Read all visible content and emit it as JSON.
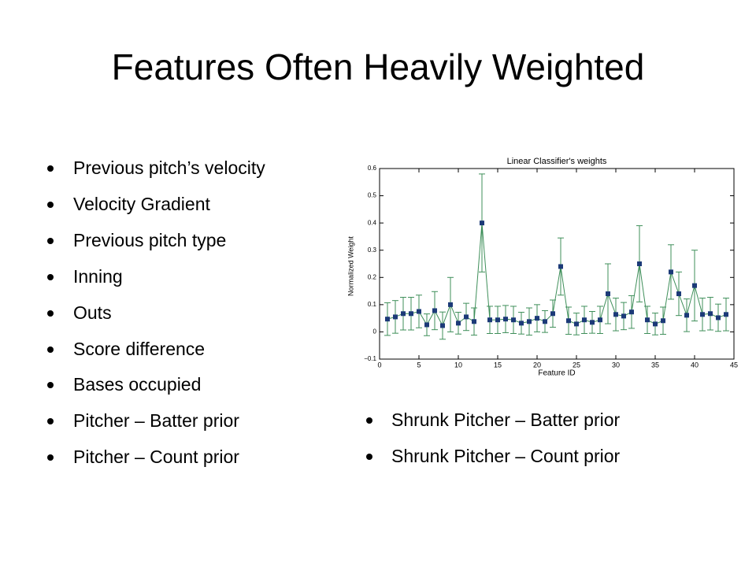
{
  "slide": {
    "title": "Features Often Heavily Weighted",
    "left_bullets": [
      "Previous pitch’s velocity",
      "Velocity Gradient",
      "Previous pitch type",
      "Inning",
      "Outs",
      "Score difference",
      "Bases occupied",
      "Pitcher – Batter prior",
      "Pitcher – Count prior"
    ],
    "right_bullets": [
      "Shrunk Pitcher – Batter prior",
      "Shrunk Pitcher – Count prior"
    ]
  },
  "chart_data": {
    "type": "errorbar",
    "title": "Linear Classifier's weights",
    "xlabel": "Feature ID",
    "ylabel": "Normalized Weight",
    "x": [
      1,
      2,
      3,
      4,
      5,
      6,
      7,
      8,
      9,
      10,
      11,
      12,
      13,
      14,
      15,
      16,
      17,
      18,
      19,
      20,
      21,
      22,
      23,
      24,
      25,
      26,
      27,
      28,
      29,
      30,
      31,
      32,
      33,
      34,
      35,
      36,
      37,
      38,
      39,
      40,
      41,
      42,
      43,
      44
    ],
    "values": [
      0.047,
      0.055,
      0.067,
      0.067,
      0.075,
      0.026,
      0.078,
      0.023,
      0.1,
      0.032,
      0.055,
      0.038,
      0.4,
      0.044,
      0.044,
      0.047,
      0.044,
      0.032,
      0.038,
      0.05,
      0.038,
      0.067,
      0.24,
      0.041,
      0.029,
      0.044,
      0.035,
      0.044,
      0.14,
      0.064,
      0.058,
      0.073,
      0.25,
      0.044,
      0.029,
      0.041,
      0.22,
      0.14,
      0.061,
      0.17,
      0.064,
      0.067,
      0.052,
      0.064
    ],
    "errors": [
      0.06,
      0.06,
      0.06,
      0.06,
      0.06,
      0.04,
      0.07,
      0.05,
      0.1,
      0.04,
      0.05,
      0.05,
      0.18,
      0.05,
      0.05,
      0.05,
      0.05,
      0.04,
      0.05,
      0.05,
      0.04,
      0.05,
      0.105,
      0.05,
      0.04,
      0.05,
      0.04,
      0.05,
      0.11,
      0.06,
      0.05,
      0.06,
      0.14,
      0.05,
      0.04,
      0.05,
      0.1,
      0.08,
      0.06,
      0.13,
      0.06,
      0.06,
      0.05,
      0.06
    ],
    "line_color": "#3f8f5a",
    "marker_color": "#1c3a78",
    "xlim": [
      0,
      45
    ],
    "ylim": [
      -0.1,
      0.6
    ],
    "xticks": [
      0,
      5,
      10,
      15,
      20,
      25,
      30,
      35,
      40,
      45
    ],
    "yticks": [
      {
        "value": -0.1,
        "label": "−0.1"
      },
      0,
      0.1,
      0.2,
      0.3,
      0.4,
      0.5,
      0.6
    ]
  }
}
